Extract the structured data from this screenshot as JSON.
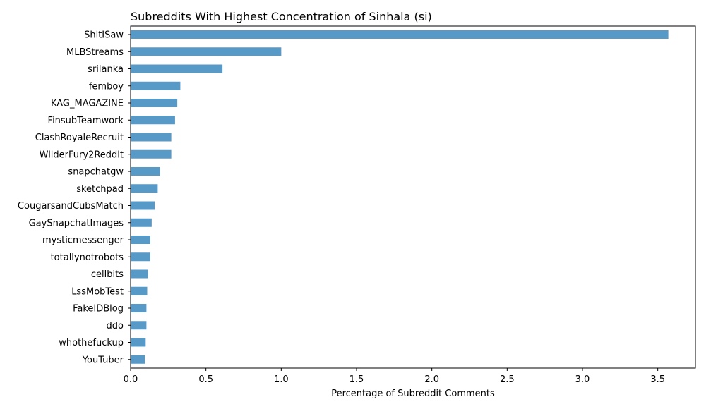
{
  "chart_data": {
    "type": "bar",
    "orientation": "horizontal",
    "title": "Subreddits With Highest Concentration of Sinhala (si)",
    "xlabel": "Percentage of Subreddit Comments",
    "ylabel": "",
    "xlim": [
      0,
      3.75
    ],
    "x_ticks": [
      "0.0",
      "0.5",
      "1.0",
      "1.5",
      "2.0",
      "2.5",
      "3.0",
      "3.5"
    ],
    "grid": false,
    "bar_color": "#5799c7",
    "categories": [
      "ShitISaw",
      "MLBStreams",
      "srilanka",
      "femboy",
      "KAG_MAGAZINE",
      "FinsubTeamwork",
      "ClashRoyaleRecruit",
      "WilderFury2Reddit",
      "snapchatgw",
      "sketchpad",
      "CougarsandCubsMatch",
      "GaySnapchatImages",
      "mysticmessenger",
      "totallynotrobots",
      "cellbits",
      "LssMobTest",
      "FakeIDBlog",
      "ddo",
      "whothefuckup",
      "YouTuber"
    ],
    "values": [
      3.57,
      1.0,
      0.61,
      0.33,
      0.31,
      0.295,
      0.27,
      0.27,
      0.195,
      0.18,
      0.16,
      0.14,
      0.13,
      0.13,
      0.115,
      0.11,
      0.105,
      0.105,
      0.1,
      0.095
    ]
  }
}
